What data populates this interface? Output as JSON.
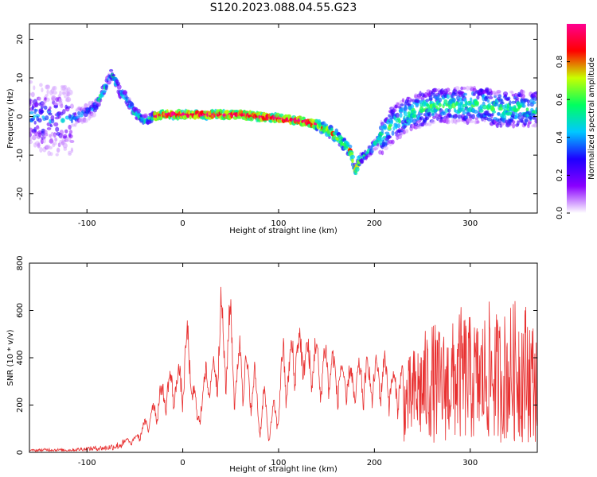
{
  "figure": {
    "title": "S120.2023.088.04.55.G23"
  },
  "chart_data": [
    {
      "type": "heatmap",
      "title": "S120.2023.088.04.55.G23",
      "xlabel": "Height of straight line (km)",
      "ylabel": "Frequency (Hz)",
      "xlim": [
        -160,
        370
      ],
      "ylim": [
        -25,
        24
      ],
      "x_ticks": [
        -100,
        0,
        100,
        200,
        300
      ],
      "y_ticks": [
        -20,
        -10,
        0,
        10,
        20
      ],
      "colorbar": {
        "label": "Normalized spectral amplitude",
        "range": [
          0,
          1
        ],
        "ticks": [
          0.0,
          0.2,
          0.4,
          0.6,
          0.8
        ],
        "colormap": [
          "#ffffff",
          "#8a00ff",
          "#1e00ff",
          "#00c8ff",
          "#00ff60",
          "#c8ff00",
          "#ff0000",
          "#ff0090"
        ]
      },
      "ridge": {
        "x": [
          -160,
          -140,
          -120,
          -100,
          -90,
          -80,
          -75,
          -70,
          -65,
          -60,
          -55,
          -50,
          -40,
          -30,
          -20,
          0,
          20,
          40,
          60,
          80,
          100,
          120,
          140,
          160,
          175,
          180,
          185,
          195,
          205,
          215,
          230,
          250,
          270,
          290,
          310,
          330,
          350,
          370
        ],
        "y": [
          0.5,
          -1,
          -1,
          1,
          3,
          8,
          11,
          9,
          6,
          5,
          3,
          1,
          -1,
          0,
          0.5,
          0.5,
          0.5,
          0.5,
          0.5,
          0,
          -0.5,
          -1,
          -2,
          -5,
          -9,
          -14,
          -11,
          -9,
          -6,
          -3,
          0,
          2,
          3,
          3,
          3,
          2,
          2,
          2
        ]
      },
      "grid": false,
      "legend": "colorbar right"
    },
    {
      "type": "line",
      "xlabel": "Height of straight line (km)",
      "ylabel": "SNR (10 * v/v)",
      "xlim": [
        -160,
        370
      ],
      "ylim": [
        0,
        800
      ],
      "x_ticks": [
        -100,
        0,
        100,
        200,
        300
      ],
      "y_ticks": [
        0,
        200,
        400,
        600,
        800
      ],
      "color": "#e83030",
      "series": [
        {
          "x": [
            -160,
            -140,
            -120,
            -100,
            -80,
            -70,
            -60,
            -50,
            -40,
            -30,
            -20,
            -10,
            0,
            5,
            10,
            15,
            20,
            25,
            30,
            35,
            40,
            45,
            50,
            55,
            60,
            65,
            70,
            75,
            80,
            85,
            90,
            95,
            100,
            105,
            110,
            115,
            120,
            125,
            130,
            135,
            140,
            145,
            150,
            160,
            170,
            180,
            190,
            200,
            210,
            220,
            230,
            240,
            250,
            260,
            270,
            280,
            290,
            300,
            310,
            320,
            330,
            340,
            350,
            360,
            370
          ],
          "values": [
            10,
            15,
            12,
            20,
            25,
            35,
            50,
            60,
            120,
            200,
            280,
            320,
            340,
            500,
            330,
            160,
            240,
            380,
            330,
            420,
            610,
            440,
            600,
            300,
            460,
            400,
            280,
            350,
            120,
            260,
            80,
            200,
            180,
            470,
            320,
            500,
            450,
            520,
            420,
            440,
            440,
            360,
            440,
            360,
            340,
            330,
            360,
            350,
            380,
            300,
            330,
            420,
            480,
            540,
            500,
            520,
            600,
            560,
            540,
            620,
            560,
            600,
            640,
            620,
            500
          ]
        }
      ],
      "grid": false
    }
  ]
}
